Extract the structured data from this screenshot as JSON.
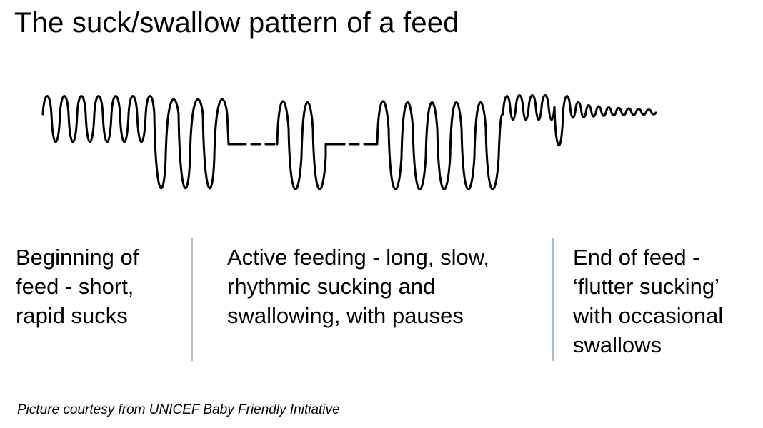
{
  "title": "The suck/swallow pattern of a feed",
  "stages": [
    {
      "lines": [
        "Beginning of",
        "feed - short,",
        "rapid sucks"
      ]
    },
    {
      "lines": [
        "Active feeding - long, slow,",
        "rhythmic sucking and",
        "swallowing, with pauses"
      ]
    },
    {
      "lines": [
        "End of feed -",
        "‘flutter sucking’",
        "with occasional",
        "swallows"
      ]
    }
  ],
  "credit": "Picture courtesy from UNICEF Baby Friendly Initiative",
  "colors": {
    "text": "#000000",
    "waveform": "#000000",
    "divider": "#a7bfcf"
  }
}
